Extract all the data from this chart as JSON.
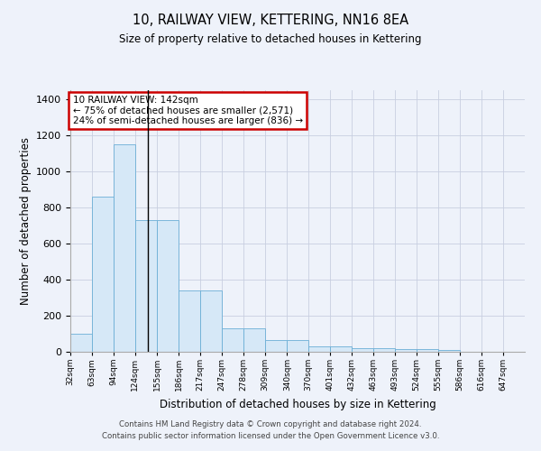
{
  "title": "10, RAILWAY VIEW, KETTERING, NN16 8EA",
  "subtitle": "Size of property relative to detached houses in Kettering",
  "xlabel": "Distribution of detached houses by size in Kettering",
  "ylabel": "Number of detached properties",
  "bar_color": "#d6e8f7",
  "bar_edge_color": "#6baed6",
  "background_color": "#eef2fa",
  "grid_color": "#c8cfe0",
  "bin_edges": [
    32,
    63,
    94,
    124,
    155,
    186,
    217,
    247,
    278,
    309,
    340,
    370,
    401,
    432,
    463,
    493,
    524,
    555,
    586,
    616,
    647,
    678
  ],
  "bar_heights": [
    100,
    860,
    1150,
    730,
    730,
    340,
    340,
    130,
    130,
    65,
    65,
    30,
    30,
    20,
    20,
    15,
    15,
    10,
    0,
    0,
    0
  ],
  "ylim": [
    0,
    1450
  ],
  "yticks": [
    0,
    200,
    400,
    600,
    800,
    1000,
    1200,
    1400
  ],
  "property_size": 142,
  "vline_color": "#000000",
  "annotation_text": "10 RAILWAY VIEW: 142sqm\n← 75% of detached houses are smaller (2,571)\n24% of semi-detached houses are larger (836) →",
  "annotation_box_color": "#ffffff",
  "annotation_box_edge": "#cc0000",
  "footer_text": "Contains HM Land Registry data © Crown copyright and database right 2024.\nContains public sector information licensed under the Open Government Licence v3.0.",
  "xtick_labels": [
    "32sqm",
    "63sqm",
    "94sqm",
    "124sqm",
    "155sqm",
    "186sqm",
    "217sqm",
    "247sqm",
    "278sqm",
    "309sqm",
    "340sqm",
    "370sqm",
    "401sqm",
    "432sqm",
    "463sqm",
    "493sqm",
    "524sqm",
    "555sqm",
    "586sqm",
    "616sqm",
    "647sqm"
  ]
}
